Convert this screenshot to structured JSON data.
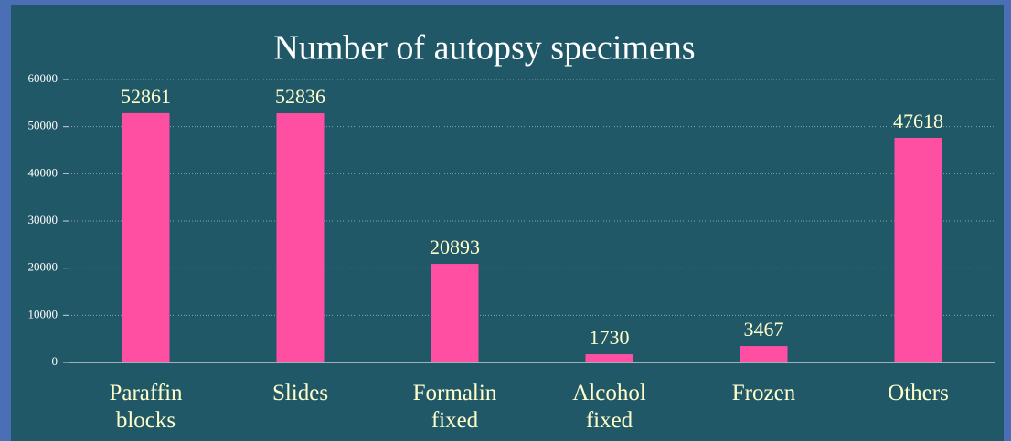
{
  "chart_data": {
    "type": "bar",
    "title": "Number of autopsy specimens",
    "categories": [
      "Paraffin blocks",
      "Slides",
      "Formalin fixed",
      "Alcohol fixed",
      "Frozen",
      "Others"
    ],
    "values": [
      52861,
      52836,
      20893,
      1730,
      3467,
      47618
    ],
    "color": "#ff4fa3",
    "ylim": [
      0,
      60000
    ],
    "yticks": [
      0,
      10000,
      20000,
      30000,
      40000,
      50000,
      60000
    ],
    "grid": true
  }
}
